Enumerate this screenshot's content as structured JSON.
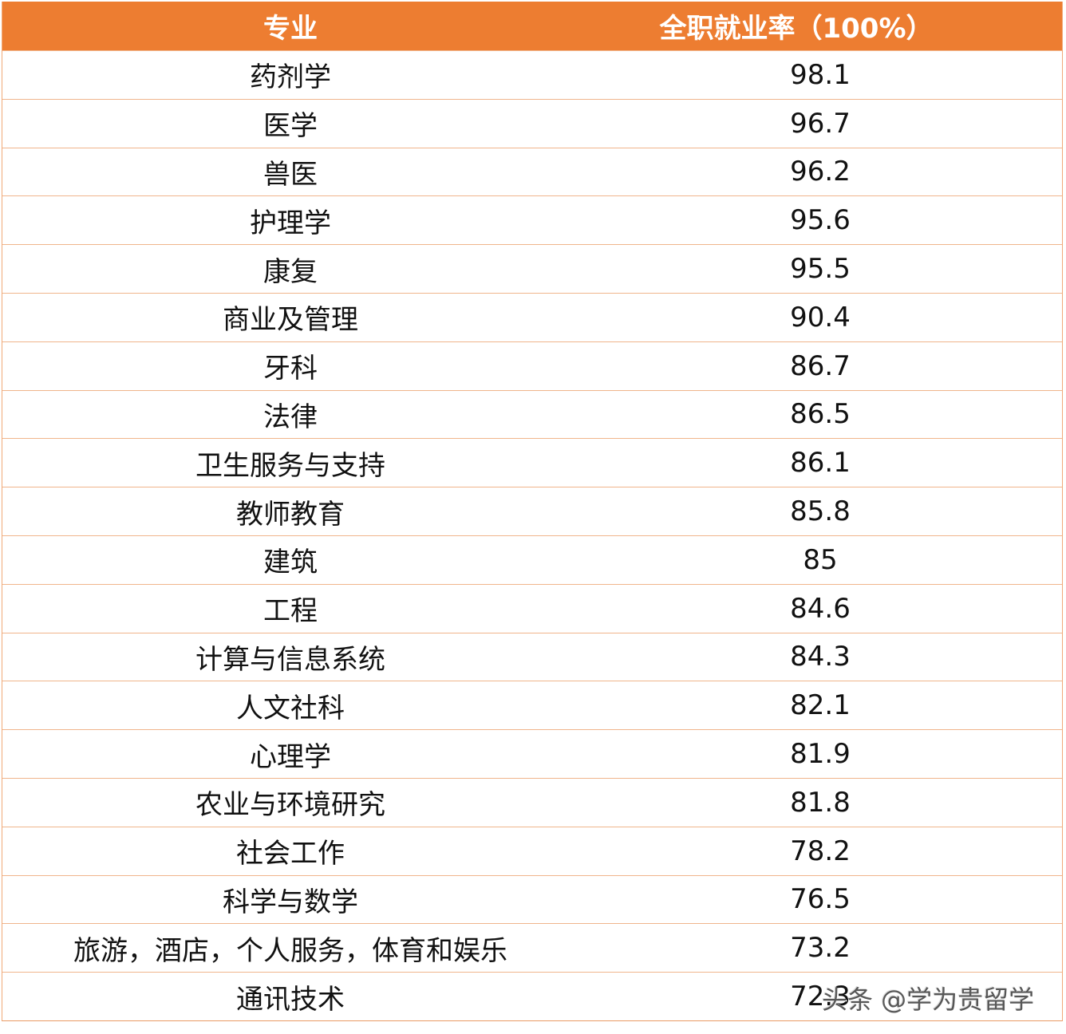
{
  "table": {
    "header": {
      "major": "专业",
      "rate": "全职就业率（100%）"
    },
    "rows": [
      {
        "major": "药剂学",
        "rate": "98.1"
      },
      {
        "major": "医学",
        "rate": "96.7"
      },
      {
        "major": "兽医",
        "rate": "96.2"
      },
      {
        "major": "护理学",
        "rate": "95.6"
      },
      {
        "major": "康复",
        "rate": "95.5"
      },
      {
        "major": "商业及管理",
        "rate": "90.4"
      },
      {
        "major": "牙科",
        "rate": "86.7"
      },
      {
        "major": "法律",
        "rate": "86.5"
      },
      {
        "major": "卫生服务与支持",
        "rate": "86.1"
      },
      {
        "major": "教师教育",
        "rate": "85.8"
      },
      {
        "major": "建筑",
        "rate": "85"
      },
      {
        "major": "工程",
        "rate": "84.6"
      },
      {
        "major": "计算与信息系统",
        "rate": "84.3"
      },
      {
        "major": "人文社科",
        "rate": "82.1"
      },
      {
        "major": "心理学",
        "rate": "81.9"
      },
      {
        "major": "农业与环境研究",
        "rate": "81.8"
      },
      {
        "major": "社会工作",
        "rate": "78.2"
      },
      {
        "major": "科学与数学",
        "rate": "76.5"
      },
      {
        "major": "旅游，酒店，个人服务，体育和娱乐",
        "rate": "73.2"
      },
      {
        "major": "通讯技术",
        "rate": "72.3"
      }
    ]
  },
  "watermark": "头条 @学为贵留学",
  "colors": {
    "header_bg": "#ED7D31",
    "header_text": "#FFFFFF",
    "grid_line": "#F0B58C",
    "body_text": "#111111"
  }
}
